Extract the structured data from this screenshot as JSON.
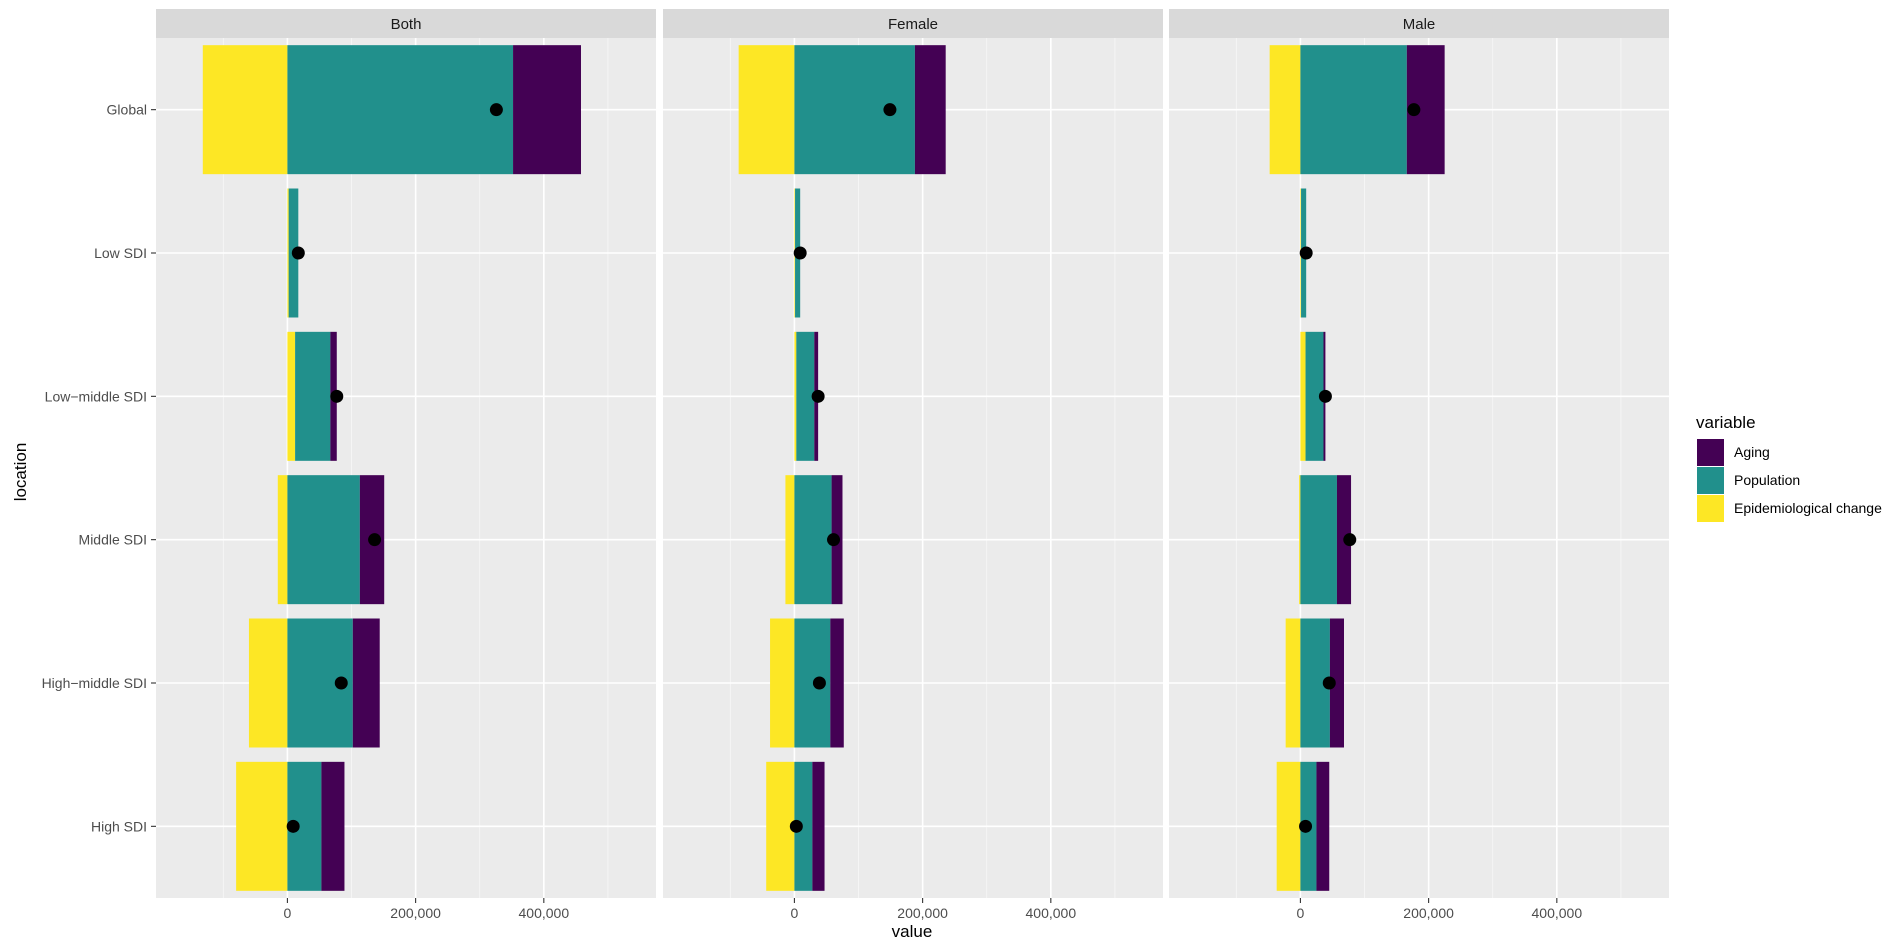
{
  "chart_data": {
    "type": "bar",
    "subtype": "stacked-horizontal-decomposition-faceted",
    "xlabel": "value",
    "ylabel": "location",
    "xlim": [
      -205000,
      575000
    ],
    "x_ticks": [
      0,
      200000,
      400000
    ],
    "x_tick_labels": [
      "0",
      "200,000",
      "400,000"
    ],
    "x_minor_ticks": [
      -100000,
      100000,
      300000,
      500000
    ],
    "categories": [
      "Global",
      "Low SDI",
      "Low−middle SDI",
      "Middle SDI",
      "High−middle SDI",
      "High SDI"
    ],
    "legend": {
      "title": "variable",
      "position": "right",
      "entries": [
        {
          "key": "aging",
          "label": "Aging",
          "color": "#440154"
        },
        {
          "key": "population",
          "label": "Population",
          "color": "#21908C"
        },
        {
          "key": "epi",
          "label": "Epidemiological change",
          "color": "#FDE725"
        }
      ]
    },
    "point_color": "#000000",
    "facets": [
      {
        "name": "Both",
        "rows": [
          {
            "location": "Global",
            "epi": -132000,
            "population": 352000,
            "aging": 106000,
            "total": 326000
          },
          {
            "location": "Low SDI",
            "epi": 2000,
            "population": 15000,
            "aging": 0,
            "total": 17000
          },
          {
            "location": "Low−middle SDI",
            "epi": 12000,
            "population": 55000,
            "aging": 10000,
            "total": 77000
          },
          {
            "location": "Middle SDI",
            "epi": -15000,
            "population": 113000,
            "aging": 38000,
            "total": 136000
          },
          {
            "location": "High−middle SDI",
            "epi": -60000,
            "population": 102000,
            "aging": 42000,
            "total": 84000
          },
          {
            "location": "High SDI",
            "epi": -80000,
            "population": 53000,
            "aging": 36000,
            "total": 9000
          }
        ]
      },
      {
        "name": "Female",
        "rows": [
          {
            "location": "Global",
            "epi": -87000,
            "population": 188000,
            "aging": 48000,
            "total": 149000
          },
          {
            "location": "Low SDI",
            "epi": 1000,
            "population": 8000,
            "aging": 0,
            "total": 9000
          },
          {
            "location": "Low−middle SDI",
            "epi": 3000,
            "population": 28000,
            "aging": 6000,
            "total": 37000
          },
          {
            "location": "Middle SDI",
            "epi": -14000,
            "population": 58000,
            "aging": 17000,
            "total": 61000
          },
          {
            "location": "High−middle SDI",
            "epi": -38000,
            "population": 56000,
            "aging": 21000,
            "total": 39000
          },
          {
            "location": "High SDI",
            "epi": -44000,
            "population": 28000,
            "aging": 19000,
            "total": 3000
          }
        ]
      },
      {
        "name": "Male",
        "rows": [
          {
            "location": "Global",
            "epi": -48000,
            "population": 166000,
            "aging": 59000,
            "total": 177000
          },
          {
            "location": "Low SDI",
            "epi": 1000,
            "population": 8000,
            "aging": 0,
            "total": 9000
          },
          {
            "location": "Low−middle SDI",
            "epi": 8000,
            "population": 28000,
            "aging": 3000,
            "total": 39000
          },
          {
            "location": "Middle SDI",
            "epi": -2000,
            "population": 57000,
            "aging": 22000,
            "total": 77000
          },
          {
            "location": "High−middle SDI",
            "epi": -23000,
            "population": 46000,
            "aging": 22000,
            "total": 45000
          },
          {
            "location": "High SDI",
            "epi": -37000,
            "population": 25000,
            "aging": 20000,
            "total": 8000
          }
        ]
      }
    ]
  }
}
